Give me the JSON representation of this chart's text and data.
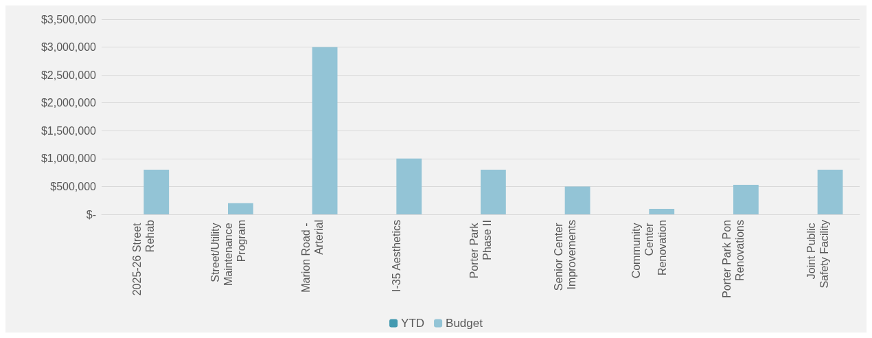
{
  "chart_data": {
    "type": "bar",
    "categories": [
      "2025-26 Street Rehab",
      "Street/Utility Maintenance Program",
      "Marion Road - Arterial",
      "I-35 Aesthetics",
      "Porter Park Phase II",
      "Senior Center Improvements",
      "Community Center Renovation",
      "Porter Park Pon Renovations",
      "Joint Public Safety Facility"
    ],
    "series": [
      {
        "name": "YTD",
        "color": "#4399b0",
        "values": [
          0,
          0,
          0,
          0,
          0,
          0,
          0,
          0,
          0
        ]
      },
      {
        "name": "Budget",
        "color": "#93c4d6",
        "values": [
          800000,
          200000,
          3000000,
          1000000,
          800000,
          500000,
          100000,
          530000,
          800000
        ]
      }
    ],
    "ylim": [
      0,
      3500000
    ],
    "yticks": [
      {
        "value": 0,
        "label": "$-"
      },
      {
        "value": 500000,
        "label": "$500,000"
      },
      {
        "value": 1000000,
        "label": "$1,000,000"
      },
      {
        "value": 1500000,
        "label": "$1,500,000"
      },
      {
        "value": 2000000,
        "label": "$2,000,000"
      },
      {
        "value": 2500000,
        "label": "$2,500,000"
      },
      {
        "value": 3000000,
        "label": "$3,000,000"
      },
      {
        "value": 3500000,
        "label": "$3,500,000"
      }
    ],
    "grid": "y",
    "legend": "bottom"
  }
}
